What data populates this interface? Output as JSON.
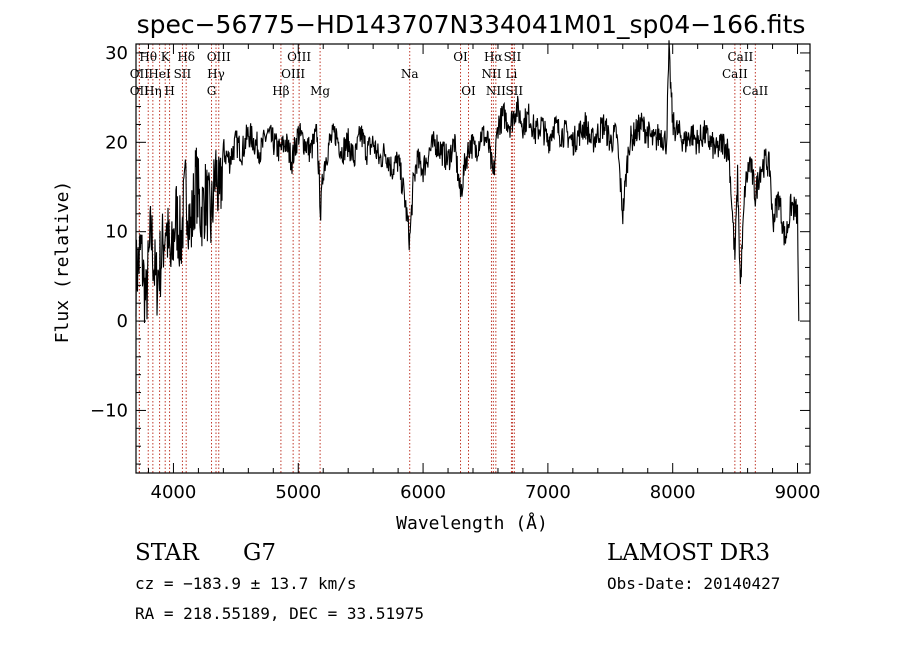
{
  "chart_data": {
    "type": "line",
    "title": "spec−56775−HD143707N334041M01_sp04−166.fits",
    "xlabel": "Wavelength (Å)",
    "ylabel": "Flux (relative)",
    "xlim": [
      3700,
      9100
    ],
    "ylim": [
      -17,
      31
    ],
    "xticks": [
      4000,
      5000,
      6000,
      7000,
      8000,
      9000
    ],
    "xtick_labels": [
      "4000",
      "5000",
      "6000",
      "7000",
      "8000",
      "9000"
    ],
    "yticks": [
      -10,
      0,
      10,
      20,
      30
    ],
    "ytick_labels": [
      "−10",
      "0",
      "10",
      "20",
      "30"
    ],
    "grid": false,
    "spectral_lines": [
      {
        "label": "OII",
        "wavelength": 3727,
        "row": 3
      },
      {
        "label": "Hθ",
        "wavelength": 3798,
        "row": 1
      },
      {
        "label": "OII",
        "wavelength": 3727,
        "row": 2
      },
      {
        "label": "HeI",
        "wavelength": 3889,
        "row": 2
      },
      {
        "label": "Hη",
        "wavelength": 3835,
        "row": 3
      },
      {
        "label": "K",
        "wavelength": 3934,
        "row": 1
      },
      {
        "label": "H",
        "wavelength": 3969,
        "row": 3
      },
      {
        "label": "SII",
        "wavelength": 4072,
        "row": 2
      },
      {
        "label": "Hδ",
        "wavelength": 4102,
        "row": 1
      },
      {
        "label": "OIII",
        "wavelength": 4363,
        "row": 1
      },
      {
        "label": "Hγ",
        "wavelength": 4341,
        "row": 2
      },
      {
        "label": "G",
        "wavelength": 4305,
        "row": 3
      },
      {
        "label": "Hβ",
        "wavelength": 4861,
        "row": 3
      },
      {
        "label": "OIII",
        "wavelength": 5007,
        "row": 1
      },
      {
        "label": "OIII",
        "wavelength": 4959,
        "row": 2
      },
      {
        "label": "Mg",
        "wavelength": 5175,
        "row": 3
      },
      {
        "label": "Na",
        "wavelength": 5893,
        "row": 2
      },
      {
        "label": "OI",
        "wavelength": 6300,
        "row": 1
      },
      {
        "label": "OI",
        "wavelength": 6364,
        "row": 3
      },
      {
        "label": "Hα",
        "wavelength": 6563,
        "row": 1
      },
      {
        "label": "NII",
        "wavelength": 6548,
        "row": 2
      },
      {
        "label": "NII",
        "wavelength": 6583,
        "row": 3
      },
      {
        "label": "SII",
        "wavelength": 6716,
        "row": 1
      },
      {
        "label": "Li",
        "wavelength": 6708,
        "row": 2
      },
      {
        "label": "SII",
        "wavelength": 6731,
        "row": 3
      },
      {
        "label": "CaII",
        "wavelength": 8542,
        "row": 1
      },
      {
        "label": "CaII",
        "wavelength": 8498,
        "row": 2
      },
      {
        "label": "CaII",
        "wavelength": 8662,
        "row": 3
      }
    ],
    "series": [
      {
        "name": "flux",
        "x": [
          3700,
          3740,
          3780,
          3820,
          3860,
          3900,
          3940,
          3980,
          4020,
          4060,
          4100,
          4140,
          4180,
          4220,
          4260,
          4300,
          4340,
          4370,
          4400,
          4450,
          4500,
          4550,
          4600,
          4650,
          4700,
          4750,
          4800,
          4850,
          4900,
          4950,
          5000,
          5050,
          5100,
          5150,
          5180,
          5200,
          5250,
          5300,
          5350,
          5400,
          5450,
          5500,
          5550,
          5600,
          5650,
          5700,
          5750,
          5800,
          5850,
          5893,
          5920,
          5950,
          6000,
          6050,
          6100,
          6150,
          6200,
          6250,
          6300,
          6340,
          6380,
          6420,
          6470,
          6520,
          6563,
          6600,
          6650,
          6700,
          6750,
          6800,
          6850,
          6900,
          6950,
          7000,
          7050,
          7100,
          7150,
          7200,
          7250,
          7300,
          7350,
          7400,
          7450,
          7500,
          7550,
          7600,
          7650,
          7700,
          7750,
          7800,
          7850,
          7900,
          7950,
          7970,
          8000,
          8050,
          8100,
          8150,
          8200,
          8250,
          8300,
          8350,
          8400,
          8450,
          8498,
          8520,
          8542,
          8580,
          8620,
          8662,
          8700,
          8750,
          8780,
          8800,
          8850,
          8900,
          8950,
          9000,
          9010
        ],
        "values": [
          5,
          8,
          2,
          10,
          4,
          7,
          11,
          6,
          12,
          9,
          15,
          10,
          16,
          12,
          14,
          11,
          17,
          13,
          19,
          18,
          20,
          19,
          21,
          20,
          19,
          21,
          20,
          19,
          20,
          18,
          21,
          20,
          19,
          21,
          12,
          17,
          20,
          21,
          19,
          20,
          18,
          21,
          19,
          20,
          18,
          19,
          17,
          18,
          14,
          9,
          15,
          18,
          17,
          19,
          20,
          19,
          18,
          20,
          14,
          18,
          20,
          19,
          21,
          20,
          16,
          22,
          23,
          22,
          24,
          22,
          23,
          21,
          22,
          20,
          22,
          21,
          21,
          20,
          21,
          22,
          20,
          21,
          22,
          20,
          21,
          12,
          20,
          21,
          22,
          21,
          20,
          21,
          20,
          30,
          22,
          21,
          20,
          21,
          20,
          21,
          20,
          19,
          20,
          19,
          7,
          16,
          4,
          15,
          18,
          14,
          17,
          18,
          17,
          11,
          14,
          9,
          13,
          12,
          0
        ]
      }
    ]
  },
  "info": {
    "object_class": "STAR",
    "subclass": "G7",
    "survey": "LAMOST DR3",
    "cz": "cz = −183.9 ± 13.7 km/s",
    "obs_date": "Obs-Date: 20140427",
    "coords": "RA = 218.55189, DEC =  33.51975"
  },
  "colors": {
    "line": "#000000",
    "marker_lines": "#c0392b",
    "axes": "#000000"
  }
}
